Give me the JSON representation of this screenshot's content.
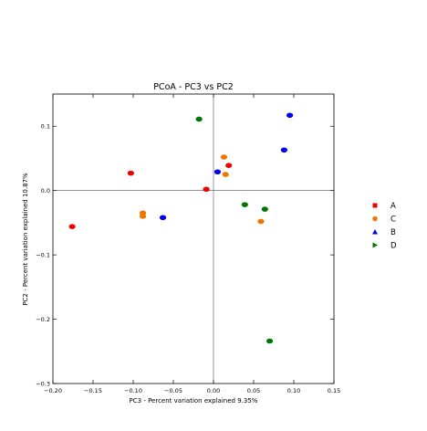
{
  "chart_data": {
    "type": "scatter",
    "title": "PCoA - PC3 vs PC2",
    "xlabel": "PC3 - Percent variation explained 9.35%",
    "ylabel": "PC2 - Percent variation explained 10.87%",
    "xlim": [
      -0.2,
      0.15
    ],
    "ylim": [
      -0.3,
      0.15
    ],
    "xticks": [
      -0.2,
      -0.15,
      -0.1,
      -0.05,
      0.0,
      0.05,
      0.1,
      0.15
    ],
    "xtick_labels": [
      "−0.20",
      "−0.15",
      "−0.10",
      "−0.05",
      "0.00",
      "0.05",
      "0.10",
      "0.15"
    ],
    "yticks": [
      -0.3,
      -0.2,
      -0.1,
      0.0,
      0.1
    ],
    "ytick_labels": [
      "−0.3",
      "−0.2",
      "−0.1",
      "0.0",
      "0.1"
    ],
    "grid": false,
    "reference_lines": {
      "x": 0,
      "y": 0
    },
    "legend": {
      "position": "right"
    },
    "series": [
      {
        "name": "A",
        "color": "#ee0000",
        "marker": "square",
        "points": [
          {
            "x": -0.176,
            "y": -0.056
          },
          {
            "x": -0.103,
            "y": 0.027
          },
          {
            "x": -0.009,
            "y": 0.002
          },
          {
            "x": 0.019,
            "y": 0.039
          }
        ]
      },
      {
        "name": "C",
        "color": "#ee7700",
        "marker": "circle",
        "points": [
          {
            "x": -0.088,
            "y": -0.035
          },
          {
            "x": -0.088,
            "y": -0.04
          },
          {
            "x": 0.013,
            "y": 0.052
          },
          {
            "x": 0.015,
            "y": 0.025
          },
          {
            "x": 0.059,
            "y": -0.048
          }
        ]
      },
      {
        "name": "B",
        "color": "#0000ee",
        "marker": "triangle",
        "points": [
          {
            "x": -0.063,
            "y": -0.042
          },
          {
            "x": 0.005,
            "y": 0.029
          },
          {
            "x": 0.088,
            "y": 0.063
          },
          {
            "x": 0.095,
            "y": 0.117
          }
        ]
      },
      {
        "name": "D",
        "color": "#007700",
        "marker": "triangle-right",
        "points": [
          {
            "x": -0.018,
            "y": 0.111
          },
          {
            "x": 0.039,
            "y": -0.022
          },
          {
            "x": 0.064,
            "y": -0.029
          },
          {
            "x": 0.07,
            "y": -0.234
          }
        ]
      }
    ]
  }
}
